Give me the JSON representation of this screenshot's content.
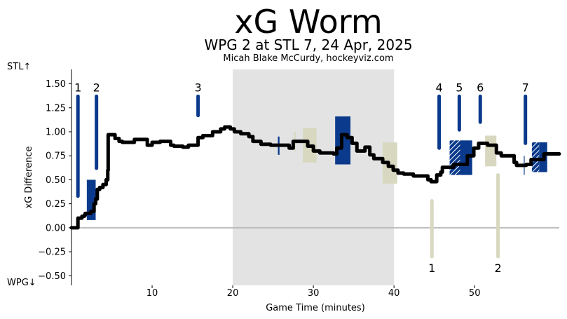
{
  "chart_data": {
    "type": "line",
    "title": "xG Worm",
    "subtitle": "WPG 2 at STL 7, 24 Apr, 2025",
    "credit": "Micah Blake McCurdy, hockeyviz.com",
    "xlabel": "Game Time (minutes)",
    "ylabel": "xG Difference",
    "team_up_label": "STL↑",
    "team_down_label": "WPG↓",
    "xlim": [
      0,
      60.5
    ],
    "ylim": [
      -0.6,
      1.65
    ],
    "x_ticks": [
      {
        "value": 10,
        "label": "10"
      },
      {
        "value": 20,
        "label": "20"
      },
      {
        "value": 30,
        "label": "30"
      },
      {
        "value": 40,
        "label": "40"
      },
      {
        "value": 50,
        "label": "50"
      }
    ],
    "y_ticks": [
      {
        "value": 1.5,
        "label": "1.50"
      },
      {
        "value": 1.25,
        "label": "1.25"
      },
      {
        "value": 1.0,
        "label": "1.00"
      },
      {
        "value": 0.75,
        "label": "0.75"
      },
      {
        "value": 0.5,
        "label": "0.50"
      },
      {
        "value": 0.25,
        "label": "0.25"
      },
      {
        "value": 0.0,
        "label": "0.00"
      },
      {
        "value": -0.25,
        "label": "−0.25"
      },
      {
        "value": -0.5,
        "label": "−0.50"
      }
    ],
    "colors": {
      "stl": "#0b3a8c",
      "wpg": "#d8d8c0",
      "worm": "#000000",
      "period_band": "#e3e3e3",
      "zero_line": "#bdbdbd"
    },
    "period_band": [
      20,
      40
    ],
    "worm": [
      [
        0,
        0
      ],
      [
        0.7,
        0
      ],
      [
        0.8,
        0.1
      ],
      [
        1.3,
        0.12
      ],
      [
        1.6,
        0.13
      ],
      [
        1.7,
        0.15
      ],
      [
        2.4,
        0.17
      ],
      [
        2.8,
        0.25
      ],
      [
        3.0,
        0.3
      ],
      [
        3.2,
        0.4
      ],
      [
        3.5,
        0.42
      ],
      [
        3.9,
        0.45
      ],
      [
        4.3,
        0.5
      ],
      [
        4.5,
        0.6
      ],
      [
        4.55,
        0.97
      ],
      [
        5.2,
        0.97
      ],
      [
        5.4,
        0.93
      ],
      [
        5.9,
        0.9
      ],
      [
        6.3,
        0.89
      ],
      [
        7.8,
        0.92
      ],
      [
        9.4,
        0.86
      ],
      [
        10.0,
        0.89
      ],
      [
        11.0,
        0.9
      ],
      [
        12.3,
        0.86
      ],
      [
        12.7,
        0.85
      ],
      [
        13.8,
        0.84
      ],
      [
        14.5,
        0.86
      ],
      [
        15.7,
        0.94
      ],
      [
        16.3,
        0.96
      ],
      [
        17.5,
        1.0
      ],
      [
        18.5,
        1.03
      ],
      [
        19.0,
        1.05
      ],
      [
        19.7,
        1.03
      ],
      [
        20.2,
        1.0
      ],
      [
        21.0,
        0.98
      ],
      [
        22.0,
        0.95
      ],
      [
        22.5,
        0.9
      ],
      [
        23.5,
        0.87
      ],
      [
        24.7,
        0.86
      ],
      [
        25.2,
        0.86
      ],
      [
        27.0,
        0.83
      ],
      [
        27.5,
        0.9
      ],
      [
        28.5,
        0.9
      ],
      [
        29.3,
        0.85
      ],
      [
        30.0,
        0.8
      ],
      [
        30.8,
        0.78
      ],
      [
        32.5,
        0.77
      ],
      [
        32.9,
        0.83
      ],
      [
        33.5,
        0.97
      ],
      [
        34.2,
        0.94
      ],
      [
        34.8,
        0.88
      ],
      [
        35.4,
        0.8
      ],
      [
        36.4,
        0.84
      ],
      [
        37.0,
        0.76
      ],
      [
        37.5,
        0.72
      ],
      [
        38.6,
        0.68
      ],
      [
        39.3,
        0.64
      ],
      [
        39.9,
        0.6
      ],
      [
        40.5,
        0.57
      ],
      [
        41.2,
        0.56
      ],
      [
        42.4,
        0.54
      ],
      [
        44.2,
        0.5
      ],
      [
        44.6,
        0.48
      ],
      [
        45.3,
        0.55
      ],
      [
        45.8,
        0.58
      ],
      [
        46.0,
        0.63
      ],
      [
        47.4,
        0.66
      ],
      [
        49.1,
        0.75
      ],
      [
        49.9,
        0.83
      ],
      [
        50.5,
        0.88
      ],
      [
        51.6,
        0.86
      ],
      [
        52.7,
        0.78
      ],
      [
        53.3,
        0.75
      ],
      [
        54.9,
        0.68
      ],
      [
        55.2,
        0.65
      ],
      [
        56.4,
        0.66
      ],
      [
        57.0,
        0.71
      ],
      [
        58.6,
        0.77
      ],
      [
        59.5,
        0.77
      ],
      [
        60.5,
        0.77
      ]
    ],
    "goals": [
      {
        "team": "STL",
        "label": "1",
        "x": 0.8,
        "y_top": 1.37,
        "y_bottom": 0.33
      },
      {
        "team": "STL",
        "label": "2",
        "x": 3.1,
        "y_top": 1.37,
        "y_bottom": 0.62
      },
      {
        "team": "STL",
        "label": "3",
        "x": 15.7,
        "y_top": 1.37,
        "y_bottom": 1.17
      },
      {
        "team": "STL",
        "label": "4",
        "x": 45.6,
        "y_top": 1.37,
        "y_bottom": 0.83
      },
      {
        "team": "STL",
        "label": "5",
        "x": 48.1,
        "y_top": 1.37,
        "y_bottom": 1.02
      },
      {
        "team": "STL",
        "label": "6",
        "x": 50.7,
        "y_top": 1.37,
        "y_bottom": 1.1
      },
      {
        "team": "STL",
        "label": "7",
        "x": 56.3,
        "y_top": 1.37,
        "y_bottom": 0.88
      },
      {
        "team": "WPG",
        "label": "1",
        "x": 44.7,
        "y_top": 0.28,
        "y_bottom": -0.3
      },
      {
        "team": "WPG",
        "label": "2",
        "x": 52.9,
        "y_top": 0.55,
        "y_bottom": -0.3
      }
    ],
    "penalty_boxes": [
      {
        "team": "STL",
        "x_start": 1.9,
        "x_end": 3.0,
        "y_low": 0.08,
        "y_high": 0.5,
        "hatched": false
      },
      {
        "team": "STL",
        "x_start": 25.6,
        "x_end": 25.8,
        "y_low": 0.76,
        "y_high": 0.95,
        "hatched": false
      },
      {
        "team": "WPG",
        "x_start": 27.6,
        "x_end": 27.8,
        "y_low": 0.8,
        "y_high": 1.0,
        "hatched": false
      },
      {
        "team": "WPG",
        "x_start": 28.7,
        "x_end": 30.4,
        "y_low": 0.68,
        "y_high": 1.04,
        "hatched": false
      },
      {
        "team": "STL",
        "x_start": 32.7,
        "x_end": 34.6,
        "y_low": 0.66,
        "y_high": 1.16,
        "hatched": false
      },
      {
        "team": "WPG",
        "x_start": 38.6,
        "x_end": 40.4,
        "y_low": 0.46,
        "y_high": 0.89,
        "hatched": false
      },
      {
        "team": "STL",
        "x_start": 46.9,
        "x_end": 48.2,
        "y_low": 0.55,
        "y_high": 0.91,
        "hatched": true
      },
      {
        "team": "STL",
        "x_start": 48.2,
        "x_end": 49.7,
        "y_low": 0.55,
        "y_high": 0.91,
        "hatched": false
      },
      {
        "team": "WPG",
        "x_start": 51.3,
        "x_end": 52.7,
        "y_low": 0.64,
        "y_high": 0.96,
        "hatched": false
      },
      {
        "team": "STL",
        "x_start": 56.1,
        "x_end": 56.2,
        "y_low": 0.55,
        "y_high": 0.75,
        "hatched": false
      },
      {
        "team": "STL",
        "x_start": 57.1,
        "x_end": 58.0,
        "y_low": 0.58,
        "y_high": 0.89,
        "hatched": true
      },
      {
        "team": "STL",
        "x_start": 58.0,
        "x_end": 59.0,
        "y_low": 0.58,
        "y_high": 0.89,
        "hatched": false
      }
    ]
  }
}
